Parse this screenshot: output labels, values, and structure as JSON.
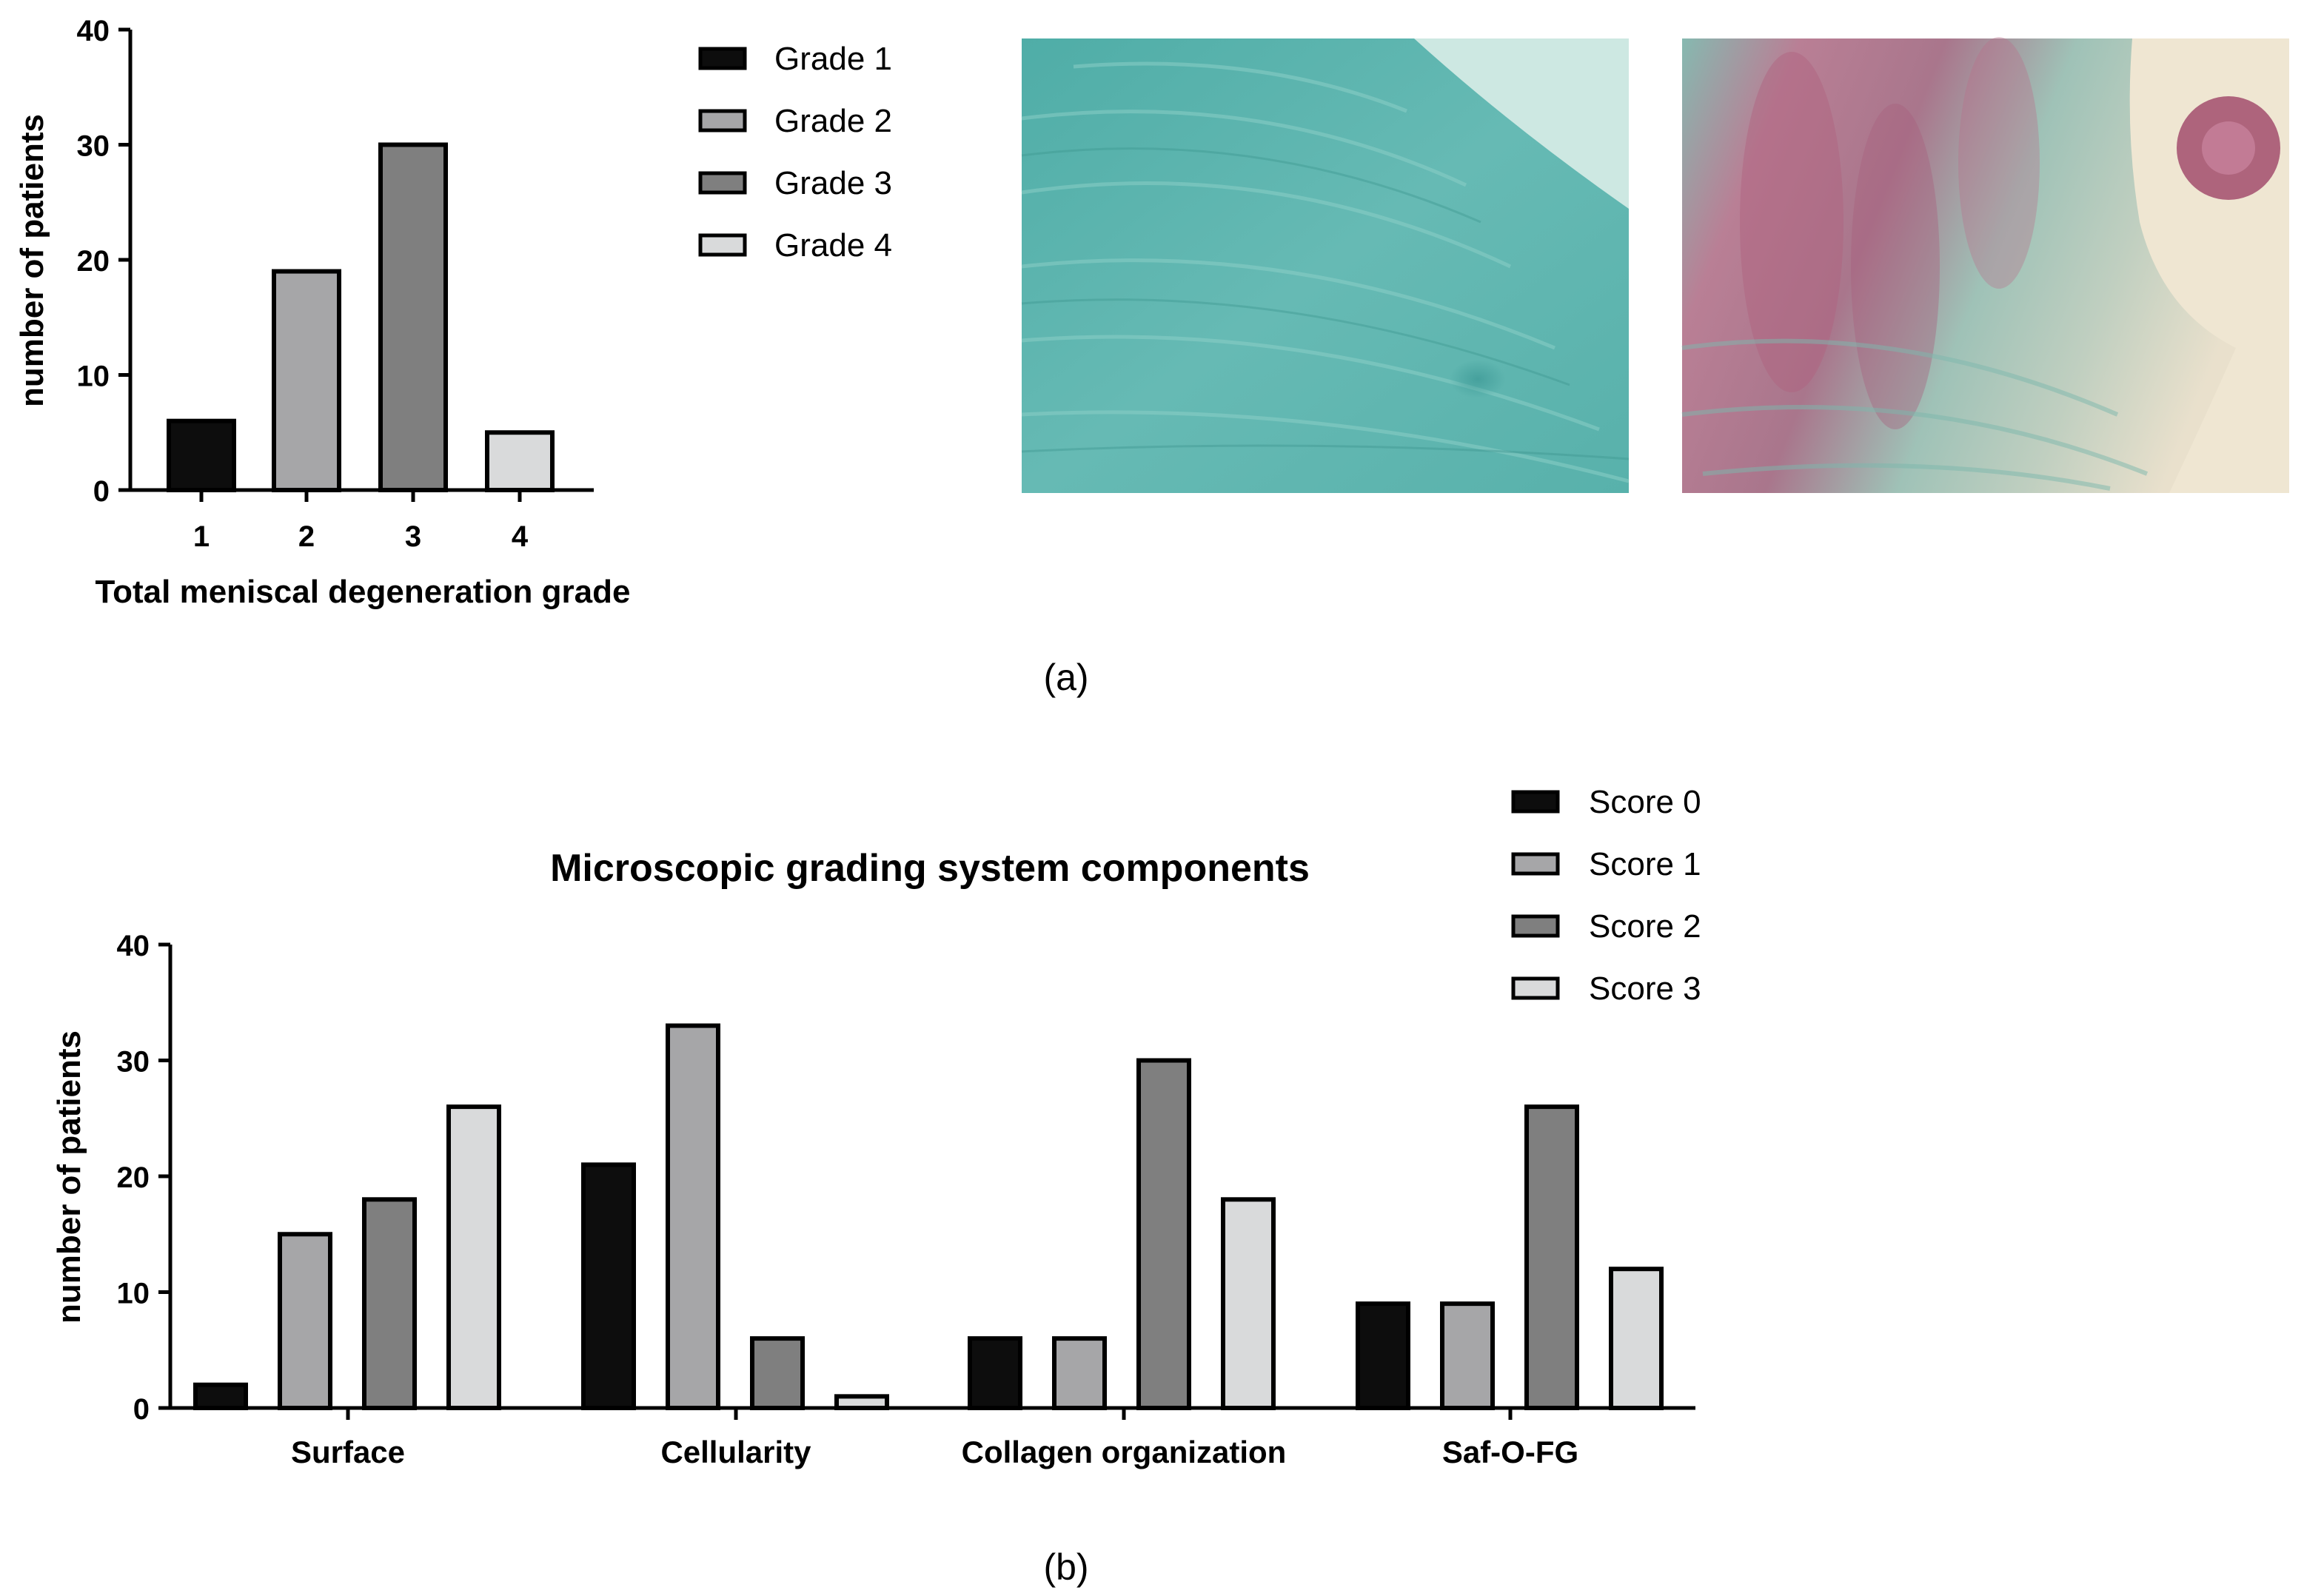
{
  "chart_data": [
    {
      "type": "bar",
      "categories": [
        "1",
        "2",
        "3",
        "4"
      ],
      "series": [
        {
          "name": "Grade 1",
          "values": [
            6,
            null,
            null,
            null
          ]
        },
        {
          "name": "Grade 2",
          "values": [
            null,
            19,
            null,
            null
          ]
        },
        {
          "name": "Grade 3",
          "values": [
            null,
            null,
            30,
            null
          ]
        },
        {
          "name": "Grade 4",
          "values": [
            null,
            null,
            null,
            5
          ]
        }
      ],
      "xlabel": "Total meniscal degeneration grade",
      "ylabel": "number of patients",
      "ylim": [
        0,
        40
      ],
      "yticks": [
        0,
        10,
        20,
        30,
        40
      ],
      "legend_position": "right",
      "grid": false
    },
    {
      "type": "bar",
      "title": "Microscopic grading system components",
      "categories": [
        "Surface",
        "Cellularity",
        "Collagen organization",
        "Saf-O-FG"
      ],
      "series": [
        {
          "name": "Score 0",
          "values": [
            2,
            21,
            6,
            9
          ]
        },
        {
          "name": "Score 1",
          "values": [
            15,
            33,
            6,
            9
          ]
        },
        {
          "name": "Score 2",
          "values": [
            18,
            6,
            30,
            26
          ]
        },
        {
          "name": "Score 3",
          "values": [
            26,
            1,
            18,
            12
          ]
        }
      ],
      "ylabel": "number of patients",
      "ylim": [
        0,
        40
      ],
      "yticks": [
        0,
        10,
        20,
        30,
        40
      ],
      "legend_position": "top-right",
      "grid": false
    }
  ],
  "colors": {
    "grade_1": "#0d0d0d",
    "grade_2": "#a6a6a8",
    "grade_3": "#7f7f7f",
    "grade_4": "#d9dadb"
  },
  "images": [
    {
      "name": "histology-image-green",
      "colors": [
        "#5ab3ad",
        "#8ccfc8",
        "#cde8e2"
      ]
    },
    {
      "name": "histology-image-red",
      "colors": [
        "#b06a86",
        "#7fbcb3",
        "#f2ecd9"
      ]
    }
  ],
  "panel_labels": [
    "(a)",
    "(b)"
  ]
}
